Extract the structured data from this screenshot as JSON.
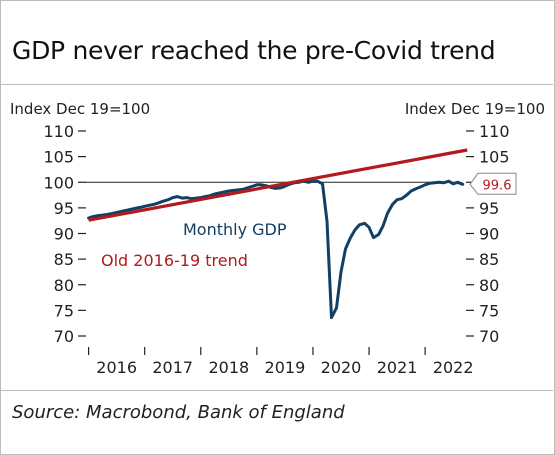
{
  "title": "GDP never reached the pre-Covid trend",
  "source": "Source: Macrobond, Bank of England",
  "chart_data": {
    "type": "line",
    "ylabel_left": "Index Dec 19=100",
    "ylabel_right": "Index Dec 19=100",
    "ylim": [
      70,
      110
    ],
    "yticks": [
      110,
      105,
      100,
      95,
      90,
      85,
      80,
      75,
      70
    ],
    "xlim": [
      2015.9,
      2022.8
    ],
    "xtick_labels": [
      "2016",
      "2017",
      "2018",
      "2019",
      "2020",
      "2021",
      "2022"
    ],
    "xtick_values": [
      2016.5,
      2017.5,
      2018.5,
      2019.5,
      2020.5,
      2021.5,
      2022.5
    ],
    "reference_line": 100,
    "end_label": "99.6",
    "colors": {
      "gdp": "#123f64",
      "trend": "#b4191d"
    },
    "series": [
      {
        "name": "Monthly GDP",
        "points": [
          [
            2016.0,
            93.0
          ],
          [
            2016.08,
            93.3
          ],
          [
            2016.17,
            93.5
          ],
          [
            2016.25,
            93.6
          ],
          [
            2016.33,
            93.7
          ],
          [
            2016.42,
            93.9
          ],
          [
            2016.5,
            94.1
          ],
          [
            2016.58,
            94.3
          ],
          [
            2016.67,
            94.5
          ],
          [
            2016.75,
            94.7
          ],
          [
            2016.83,
            94.9
          ],
          [
            2016.92,
            95.1
          ],
          [
            2017.0,
            95.3
          ],
          [
            2017.08,
            95.5
          ],
          [
            2017.17,
            95.7
          ],
          [
            2017.25,
            96.0
          ],
          [
            2017.33,
            96.3
          ],
          [
            2017.42,
            96.6
          ],
          [
            2017.5,
            97.0
          ],
          [
            2017.58,
            97.2
          ],
          [
            2017.67,
            96.9
          ],
          [
            2017.75,
            97.0
          ],
          [
            2017.83,
            96.8
          ],
          [
            2017.92,
            96.9
          ],
          [
            2018.0,
            97.0
          ],
          [
            2018.08,
            97.2
          ],
          [
            2018.17,
            97.4
          ],
          [
            2018.25,
            97.7
          ],
          [
            2018.33,
            97.9
          ],
          [
            2018.42,
            98.1
          ],
          [
            2018.5,
            98.3
          ],
          [
            2018.58,
            98.4
          ],
          [
            2018.67,
            98.5
          ],
          [
            2018.75,
            98.6
          ],
          [
            2018.83,
            98.9
          ],
          [
            2018.92,
            99.2
          ],
          [
            2019.0,
            99.5
          ],
          [
            2019.08,
            99.5
          ],
          [
            2019.17,
            99.3
          ],
          [
            2019.25,
            99.0
          ],
          [
            2019.33,
            98.8
          ],
          [
            2019.42,
            98.9
          ],
          [
            2019.5,
            99.2
          ],
          [
            2019.58,
            99.6
          ],
          [
            2019.67,
            99.9
          ],
          [
            2019.75,
            100.0
          ],
          [
            2019.83,
            100.2
          ],
          [
            2019.92,
            100.0
          ],
          [
            2020.0,
            100.2
          ],
          [
            2020.08,
            100.2
          ],
          [
            2020.17,
            99.7
          ],
          [
            2020.25,
            92.4
          ],
          [
            2020.33,
            73.6
          ],
          [
            2020.42,
            75.5
          ],
          [
            2020.5,
            82.5
          ],
          [
            2020.58,
            87.0
          ],
          [
            2020.67,
            89.2
          ],
          [
            2020.75,
            90.7
          ],
          [
            2020.83,
            91.7
          ],
          [
            2020.92,
            92.0
          ],
          [
            2021.0,
            91.2
          ],
          [
            2021.08,
            89.2
          ],
          [
            2021.17,
            89.8
          ],
          [
            2021.25,
            91.5
          ],
          [
            2021.33,
            94.0
          ],
          [
            2021.42,
            95.7
          ],
          [
            2021.5,
            96.6
          ],
          [
            2021.58,
            96.8
          ],
          [
            2021.67,
            97.5
          ],
          [
            2021.75,
            98.3
          ],
          [
            2021.83,
            98.7
          ],
          [
            2021.92,
            99.1
          ],
          [
            2022.0,
            99.5
          ],
          [
            2022.08,
            99.8
          ],
          [
            2022.17,
            99.9
          ],
          [
            2022.25,
            100.0
          ],
          [
            2022.33,
            99.9
          ],
          [
            2022.42,
            100.2
          ],
          [
            2022.5,
            99.7
          ],
          [
            2022.58,
            100.0
          ],
          [
            2022.67,
            99.6
          ]
        ],
        "label": "Monthly GDP"
      },
      {
        "name": "Old 2016-19 trend",
        "points": [
          [
            2016.0,
            92.6
          ],
          [
            2022.75,
            106.3
          ]
        ],
        "label": "Old 2016-19 trend"
      }
    ]
  }
}
